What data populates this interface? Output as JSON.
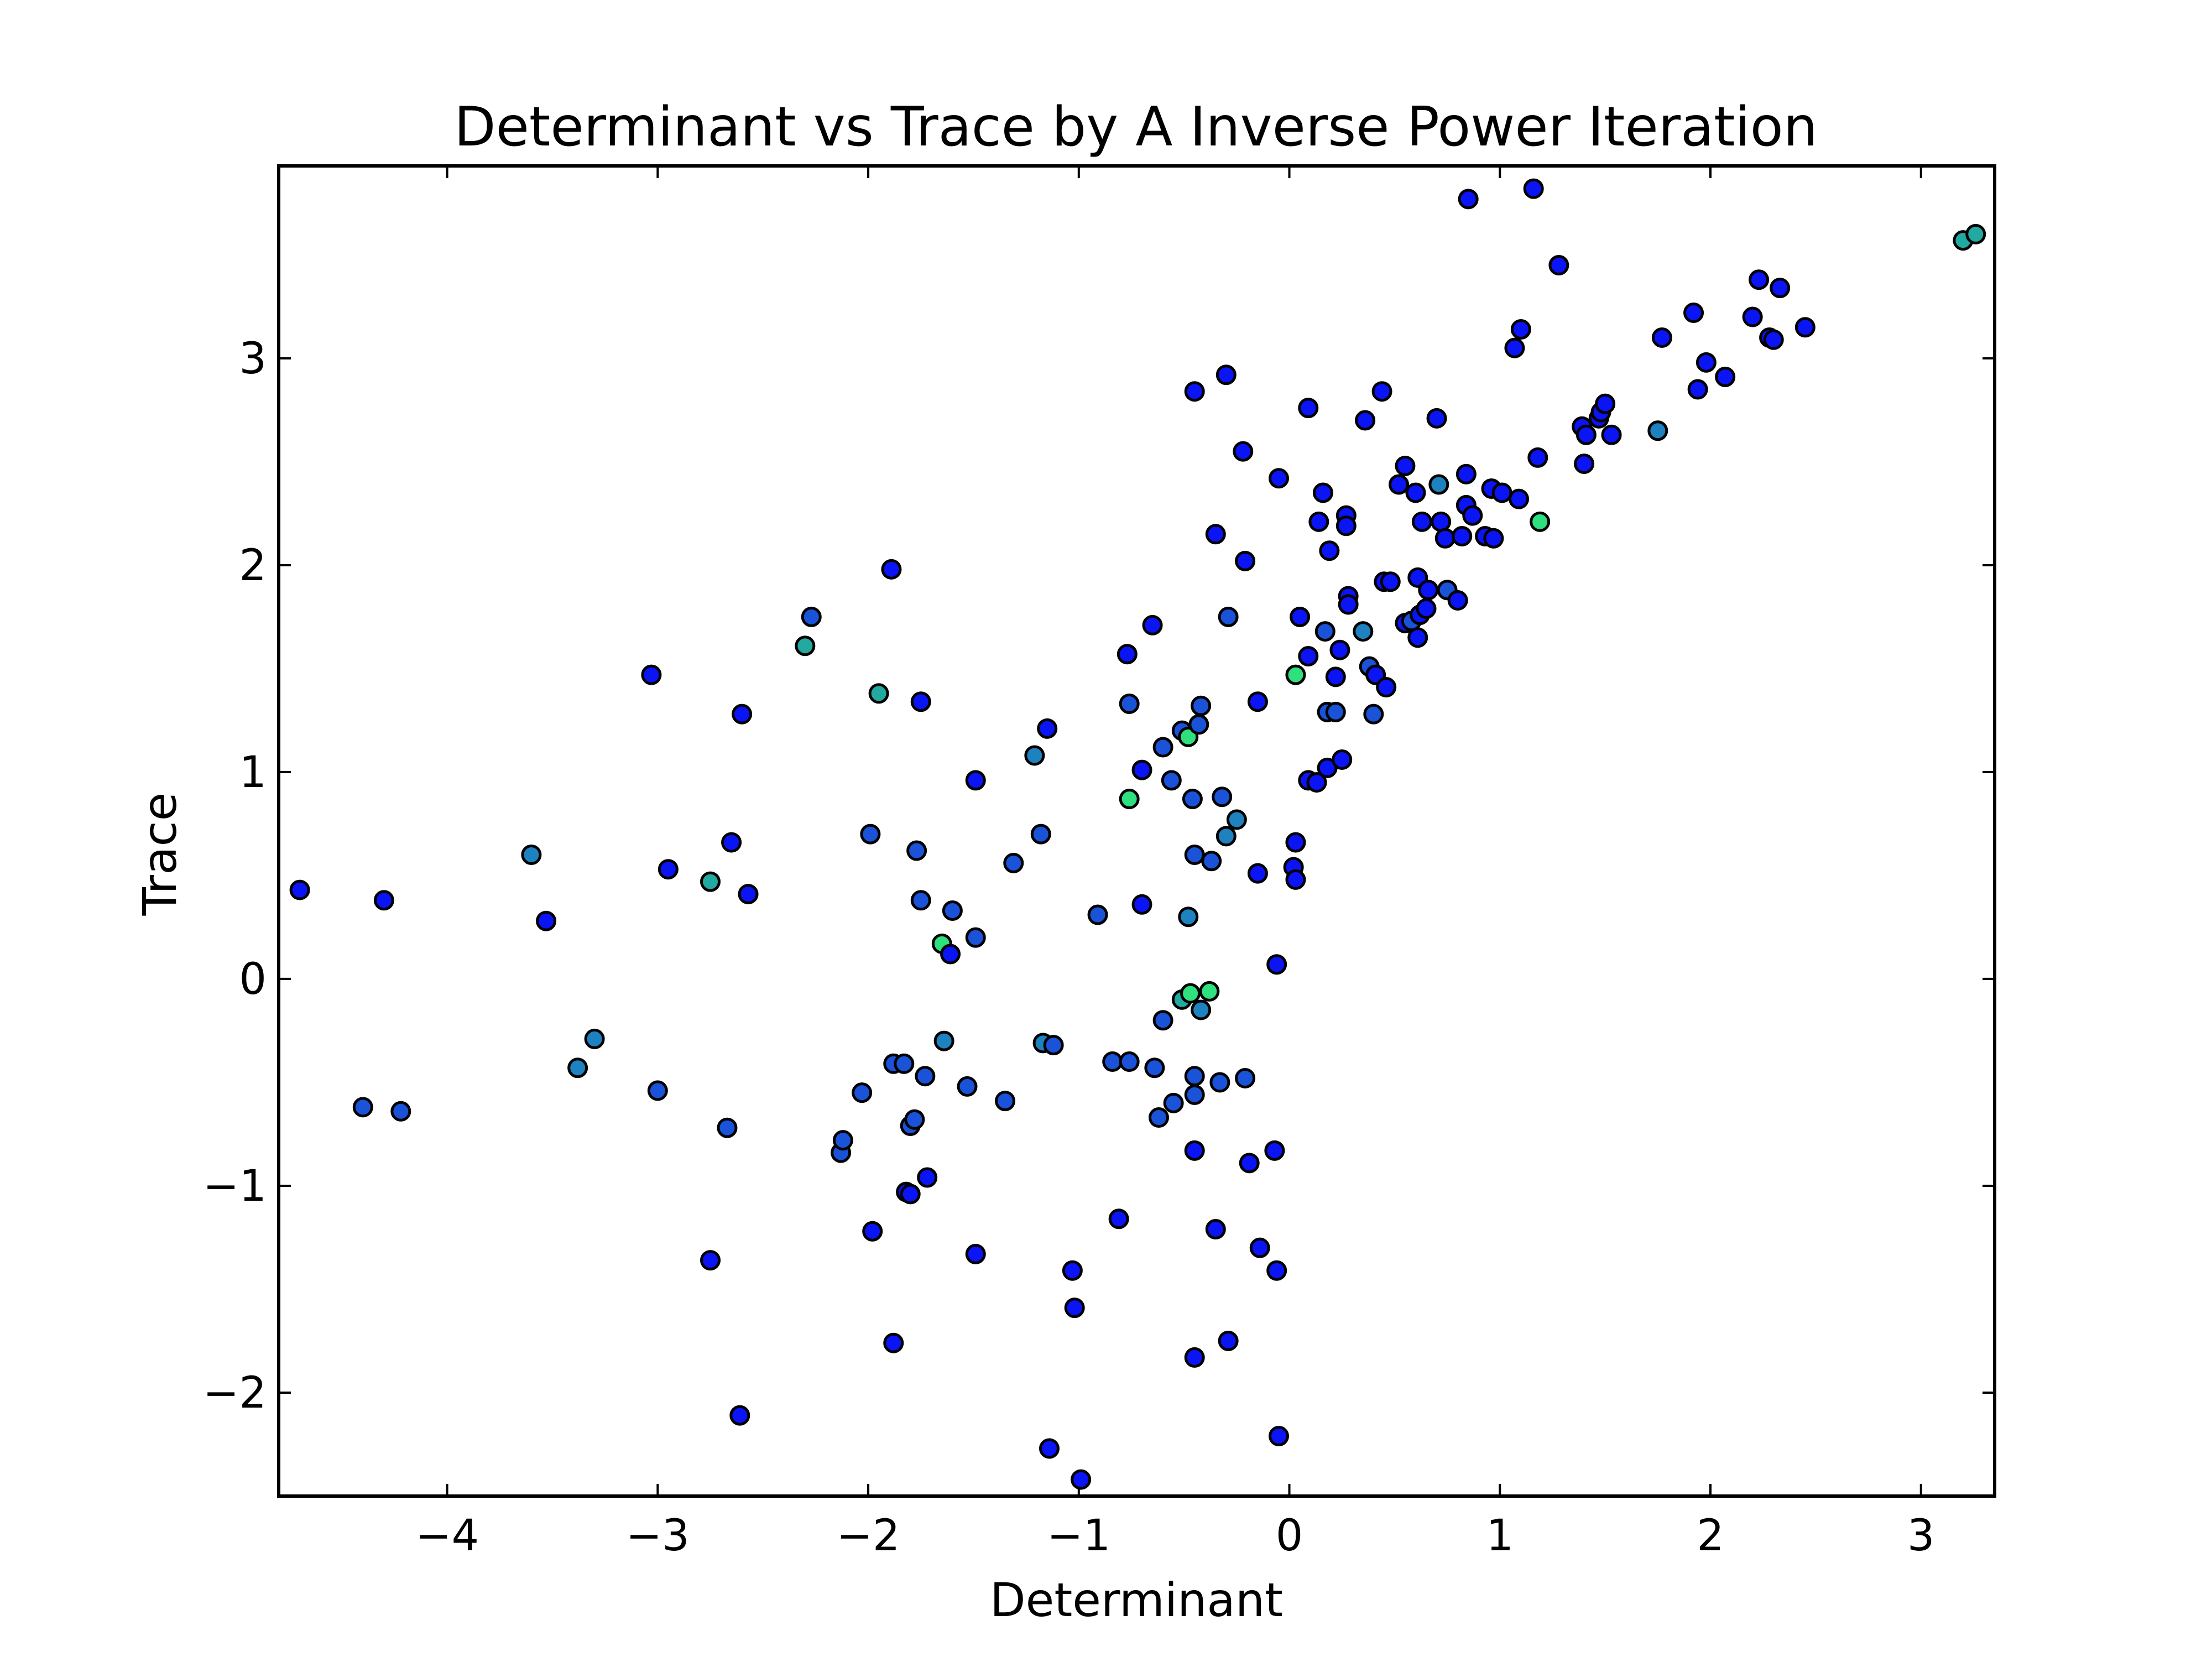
{
  "chart_data": {
    "type": "scatter",
    "title": "Determinant vs Trace by A Inverse Power Iteration",
    "xlabel": "Determinant",
    "ylabel": "Trace",
    "xlim": [
      -4.8,
      3.35
    ],
    "ylim": [
      -2.5,
      3.93
    ],
    "xticks": [
      -4,
      -3,
      -2,
      -1,
      0,
      1,
      2,
      3
    ],
    "yticks": [
      -2,
      -1,
      0,
      1,
      2,
      3
    ],
    "xtick_labels": [
      "−4",
      "−3",
      "−2",
      "−1",
      "0",
      "1",
      "2",
      "3"
    ],
    "ytick_labels": [
      "−2",
      "−1",
      "0",
      "1",
      "2",
      "3"
    ],
    "grid": false,
    "legend": "none",
    "colors": {
      "blue": "#0a14f5",
      "mid_blue": "#1a52d8",
      "steel": "#1e82c0",
      "teal": "#22a9a0",
      "green": "#2fe07e"
    },
    "points": [
      {
        "x": -4.7,
        "y": 0.43,
        "c": "blue"
      },
      {
        "x": -4.3,
        "y": 0.38,
        "c": "blue"
      },
      {
        "x": -4.4,
        "y": -0.62,
        "c": "mid_blue"
      },
      {
        "x": -4.22,
        "y": -0.64,
        "c": "mid_blue"
      },
      {
        "x": -3.6,
        "y": 0.6,
        "c": "steel"
      },
      {
        "x": -3.53,
        "y": 0.28,
        "c": "blue"
      },
      {
        "x": -3.38,
        "y": -0.43,
        "c": "steel"
      },
      {
        "x": -3.3,
        "y": -0.29,
        "c": "steel"
      },
      {
        "x": -3.03,
        "y": 1.47,
        "c": "blue"
      },
      {
        "x": -3.0,
        "y": -0.54,
        "c": "mid_blue"
      },
      {
        "x": -2.95,
        "y": 0.53,
        "c": "blue"
      },
      {
        "x": -2.75,
        "y": 0.47,
        "c": "teal"
      },
      {
        "x": -2.75,
        "y": -1.36,
        "c": "blue"
      },
      {
        "x": -2.67,
        "y": -0.72,
        "c": "mid_blue"
      },
      {
        "x": -2.65,
        "y": 0.66,
        "c": "blue"
      },
      {
        "x": -2.61,
        "y": -2.11,
        "c": "blue"
      },
      {
        "x": -2.6,
        "y": 1.28,
        "c": "blue"
      },
      {
        "x": -2.57,
        "y": 0.41,
        "c": "blue"
      },
      {
        "x": -2.3,
        "y": 1.61,
        "c": "teal"
      },
      {
        "x": -2.27,
        "y": 1.75,
        "c": "mid_blue"
      },
      {
        "x": -2.13,
        "y": -0.84,
        "c": "mid_blue"
      },
      {
        "x": -2.12,
        "y": -0.78,
        "c": "mid_blue"
      },
      {
        "x": -2.03,
        "y": -0.55,
        "c": "mid_blue"
      },
      {
        "x": -1.99,
        "y": 0.7,
        "c": "mid_blue"
      },
      {
        "x": -1.98,
        "y": -1.22,
        "c": "blue"
      },
      {
        "x": -1.95,
        "y": 1.38,
        "c": "teal"
      },
      {
        "x": -1.89,
        "y": 1.98,
        "c": "blue"
      },
      {
        "x": -1.88,
        "y": -0.41,
        "c": "mid_blue"
      },
      {
        "x": -1.88,
        "y": -1.76,
        "c": "blue"
      },
      {
        "x": -1.83,
        "y": -0.41,
        "c": "mid_blue"
      },
      {
        "x": -1.82,
        "y": -1.03,
        "c": "blue"
      },
      {
        "x": -1.8,
        "y": -1.04,
        "c": "blue"
      },
      {
        "x": -1.8,
        "y": -0.71,
        "c": "mid_blue"
      },
      {
        "x": -1.78,
        "y": -0.68,
        "c": "mid_blue"
      },
      {
        "x": -1.77,
        "y": 0.62,
        "c": "mid_blue"
      },
      {
        "x": -1.75,
        "y": 1.34,
        "c": "blue"
      },
      {
        "x": -1.75,
        "y": 0.38,
        "c": "mid_blue"
      },
      {
        "x": -1.73,
        "y": -0.47,
        "c": "mid_blue"
      },
      {
        "x": -1.72,
        "y": -0.96,
        "c": "blue"
      },
      {
        "x": -1.65,
        "y": 0.17,
        "c": "green"
      },
      {
        "x": -1.64,
        "y": -0.3,
        "c": "steel"
      },
      {
        "x": -1.61,
        "y": 0.12,
        "c": "blue"
      },
      {
        "x": -1.6,
        "y": 0.33,
        "c": "mid_blue"
      },
      {
        "x": -1.53,
        "y": -0.52,
        "c": "mid_blue"
      },
      {
        "x": -1.49,
        "y": 0.96,
        "c": "blue"
      },
      {
        "x": -1.49,
        "y": 0.2,
        "c": "mid_blue"
      },
      {
        "x": -1.49,
        "y": -1.33,
        "c": "blue"
      },
      {
        "x": -1.35,
        "y": -0.59,
        "c": "mid_blue"
      },
      {
        "x": -1.31,
        "y": 0.56,
        "c": "mid_blue"
      },
      {
        "x": -1.21,
        "y": 1.08,
        "c": "steel"
      },
      {
        "x": -1.18,
        "y": 0.7,
        "c": "mid_blue"
      },
      {
        "x": -1.17,
        "y": -0.31,
        "c": "steel"
      },
      {
        "x": -1.15,
        "y": 1.21,
        "c": "blue"
      },
      {
        "x": -1.12,
        "y": -0.32,
        "c": "mid_blue"
      },
      {
        "x": -1.14,
        "y": -2.27,
        "c": "blue"
      },
      {
        "x": -1.03,
        "y": -1.41,
        "c": "blue"
      },
      {
        "x": -1.02,
        "y": -1.59,
        "c": "blue"
      },
      {
        "x": -0.99,
        "y": -2.42,
        "c": "blue"
      },
      {
        "x": -0.91,
        "y": 0.31,
        "c": "mid_blue"
      },
      {
        "x": -0.84,
        "y": -0.4,
        "c": "mid_blue"
      },
      {
        "x": -0.81,
        "y": -1.16,
        "c": "blue"
      },
      {
        "x": -0.77,
        "y": 1.57,
        "c": "blue"
      },
      {
        "x": -0.76,
        "y": 1.33,
        "c": "mid_blue"
      },
      {
        "x": -0.76,
        "y": 0.87,
        "c": "green"
      },
      {
        "x": -0.76,
        "y": -0.4,
        "c": "mid_blue"
      },
      {
        "x": -0.7,
        "y": 1.01,
        "c": "blue"
      },
      {
        "x": -0.7,
        "y": 0.36,
        "c": "blue"
      },
      {
        "x": -0.65,
        "y": 1.71,
        "c": "blue"
      },
      {
        "x": -0.64,
        "y": -0.43,
        "c": "mid_blue"
      },
      {
        "x": -0.62,
        "y": -0.67,
        "c": "mid_blue"
      },
      {
        "x": -0.6,
        "y": -0.2,
        "c": "mid_blue"
      },
      {
        "x": -0.6,
        "y": 1.12,
        "c": "mid_blue"
      },
      {
        "x": -0.56,
        "y": 0.96,
        "c": "mid_blue"
      },
      {
        "x": -0.55,
        "y": -0.6,
        "c": "mid_blue"
      },
      {
        "x": -0.51,
        "y": 1.2,
        "c": "mid_blue"
      },
      {
        "x": -0.51,
        "y": -0.1,
        "c": "teal"
      },
      {
        "x": -0.48,
        "y": 1.17,
        "c": "green"
      },
      {
        "x": -0.48,
        "y": 0.3,
        "c": "steel"
      },
      {
        "x": -0.47,
        "y": -0.07,
        "c": "green"
      },
      {
        "x": -0.46,
        "y": 0.87,
        "c": "mid_blue"
      },
      {
        "x": -0.45,
        "y": 0.6,
        "c": "mid_blue"
      },
      {
        "x": -0.45,
        "y": 2.84,
        "c": "blue"
      },
      {
        "x": -0.45,
        "y": -0.47,
        "c": "mid_blue"
      },
      {
        "x": -0.45,
        "y": -0.56,
        "c": "mid_blue"
      },
      {
        "x": -0.45,
        "y": -0.83,
        "c": "blue"
      },
      {
        "x": -0.45,
        "y": -1.83,
        "c": "blue"
      },
      {
        "x": -0.43,
        "y": 1.23,
        "c": "mid_blue"
      },
      {
        "x": -0.42,
        "y": 1.32,
        "c": "mid_blue"
      },
      {
        "x": -0.42,
        "y": -0.15,
        "c": "steel"
      },
      {
        "x": -0.38,
        "y": -0.06,
        "c": "green"
      },
      {
        "x": -0.37,
        "y": 0.57,
        "c": "mid_blue"
      },
      {
        "x": -0.35,
        "y": 2.15,
        "c": "blue"
      },
      {
        "x": -0.35,
        "y": -1.21,
        "c": "blue"
      },
      {
        "x": -0.33,
        "y": -0.5,
        "c": "mid_blue"
      },
      {
        "x": -0.32,
        "y": 0.88,
        "c": "mid_blue"
      },
      {
        "x": -0.3,
        "y": 2.92,
        "c": "blue"
      },
      {
        "x": -0.3,
        "y": 0.69,
        "c": "steel"
      },
      {
        "x": -0.29,
        "y": 1.75,
        "c": "mid_blue"
      },
      {
        "x": -0.29,
        "y": -1.75,
        "c": "blue"
      },
      {
        "x": -0.25,
        "y": 0.77,
        "c": "steel"
      },
      {
        "x": -0.22,
        "y": 2.55,
        "c": "blue"
      },
      {
        "x": -0.21,
        "y": 2.02,
        "c": "blue"
      },
      {
        "x": -0.21,
        "y": -0.48,
        "c": "mid_blue"
      },
      {
        "x": -0.19,
        "y": -0.89,
        "c": "blue"
      },
      {
        "x": -0.15,
        "y": 1.34,
        "c": "blue"
      },
      {
        "x": -0.15,
        "y": 0.51,
        "c": "blue"
      },
      {
        "x": -0.14,
        "y": -1.3,
        "c": "blue"
      },
      {
        "x": -0.07,
        "y": -0.83,
        "c": "blue"
      },
      {
        "x": -0.06,
        "y": -1.41,
        "c": "blue"
      },
      {
        "x": -0.06,
        "y": 0.07,
        "c": "blue"
      },
      {
        "x": -0.05,
        "y": 2.42,
        "c": "blue"
      },
      {
        "x": -0.05,
        "y": -2.21,
        "c": "blue"
      },
      {
        "x": 0.02,
        "y": 0.54,
        "c": "blue"
      },
      {
        "x": 0.03,
        "y": 0.66,
        "c": "blue"
      },
      {
        "x": 0.03,
        "y": 0.48,
        "c": "blue"
      },
      {
        "x": 0.03,
        "y": 1.47,
        "c": "green"
      },
      {
        "x": 0.05,
        "y": 1.75,
        "c": "blue"
      },
      {
        "x": 0.09,
        "y": 2.76,
        "c": "blue"
      },
      {
        "x": 0.09,
        "y": 1.56,
        "c": "blue"
      },
      {
        "x": 0.09,
        "y": 0.96,
        "c": "blue"
      },
      {
        "x": 0.13,
        "y": 0.95,
        "c": "blue"
      },
      {
        "x": 0.14,
        "y": 2.21,
        "c": "blue"
      },
      {
        "x": 0.16,
        "y": 2.35,
        "c": "blue"
      },
      {
        "x": 0.17,
        "y": 1.68,
        "c": "mid_blue"
      },
      {
        "x": 0.18,
        "y": 1.29,
        "c": "mid_blue"
      },
      {
        "x": 0.18,
        "y": 1.02,
        "c": "blue"
      },
      {
        "x": 0.19,
        "y": 2.07,
        "c": "blue"
      },
      {
        "x": 0.22,
        "y": 1.46,
        "c": "blue"
      },
      {
        "x": 0.22,
        "y": 1.29,
        "c": "mid_blue"
      },
      {
        "x": 0.24,
        "y": 1.59,
        "c": "blue"
      },
      {
        "x": 0.25,
        "y": 1.06,
        "c": "blue"
      },
      {
        "x": 0.27,
        "y": 2.24,
        "c": "blue"
      },
      {
        "x": 0.27,
        "y": 2.19,
        "c": "blue"
      },
      {
        "x": 0.28,
        "y": 1.85,
        "c": "blue"
      },
      {
        "x": 0.28,
        "y": 1.81,
        "c": "blue"
      },
      {
        "x": 0.35,
        "y": 1.68,
        "c": "steel"
      },
      {
        "x": 0.36,
        "y": 2.7,
        "c": "blue"
      },
      {
        "x": 0.38,
        "y": 1.51,
        "c": "mid_blue"
      },
      {
        "x": 0.4,
        "y": 1.28,
        "c": "mid_blue"
      },
      {
        "x": 0.41,
        "y": 1.47,
        "c": "blue"
      },
      {
        "x": 0.44,
        "y": 2.84,
        "c": "blue"
      },
      {
        "x": 0.45,
        "y": 1.92,
        "c": "blue"
      },
      {
        "x": 0.46,
        "y": 1.41,
        "c": "blue"
      },
      {
        "x": 0.48,
        "y": 1.92,
        "c": "blue"
      },
      {
        "x": 0.52,
        "y": 2.39,
        "c": "blue"
      },
      {
        "x": 0.55,
        "y": 1.72,
        "c": "blue"
      },
      {
        "x": 0.55,
        "y": 2.48,
        "c": "blue"
      },
      {
        "x": 0.58,
        "y": 1.73,
        "c": "mid_blue"
      },
      {
        "x": 0.6,
        "y": 2.35,
        "c": "blue"
      },
      {
        "x": 0.61,
        "y": 1.94,
        "c": "blue"
      },
      {
        "x": 0.61,
        "y": 1.65,
        "c": "blue"
      },
      {
        "x": 0.62,
        "y": 1.76,
        "c": "blue"
      },
      {
        "x": 0.63,
        "y": 2.21,
        "c": "blue"
      },
      {
        "x": 0.65,
        "y": 1.79,
        "c": "blue"
      },
      {
        "x": 0.66,
        "y": 1.88,
        "c": "blue"
      },
      {
        "x": 0.7,
        "y": 2.71,
        "c": "blue"
      },
      {
        "x": 0.71,
        "y": 2.39,
        "c": "steel"
      },
      {
        "x": 0.72,
        "y": 2.21,
        "c": "blue"
      },
      {
        "x": 0.74,
        "y": 2.13,
        "c": "blue"
      },
      {
        "x": 0.75,
        "y": 1.88,
        "c": "mid_blue"
      },
      {
        "x": 0.8,
        "y": 1.83,
        "c": "blue"
      },
      {
        "x": 0.82,
        "y": 2.14,
        "c": "blue"
      },
      {
        "x": 0.84,
        "y": 2.44,
        "c": "blue"
      },
      {
        "x": 0.84,
        "y": 2.29,
        "c": "blue"
      },
      {
        "x": 0.85,
        "y": 3.77,
        "c": "blue"
      },
      {
        "x": 0.87,
        "y": 2.24,
        "c": "blue"
      },
      {
        "x": 0.93,
        "y": 2.14,
        "c": "blue"
      },
      {
        "x": 0.96,
        "y": 2.37,
        "c": "blue"
      },
      {
        "x": 0.97,
        "y": 2.13,
        "c": "blue"
      },
      {
        "x": 1.01,
        "y": 2.35,
        "c": "blue"
      },
      {
        "x": 1.07,
        "y": 3.05,
        "c": "blue"
      },
      {
        "x": 1.09,
        "y": 2.32,
        "c": "blue"
      },
      {
        "x": 1.1,
        "y": 3.14,
        "c": "blue"
      },
      {
        "x": 1.16,
        "y": 3.82,
        "c": "blue"
      },
      {
        "x": 1.18,
        "y": 2.52,
        "c": "blue"
      },
      {
        "x": 1.19,
        "y": 2.21,
        "c": "green"
      },
      {
        "x": 1.28,
        "y": 3.45,
        "c": "blue"
      },
      {
        "x": 1.39,
        "y": 2.67,
        "c": "blue"
      },
      {
        "x": 1.4,
        "y": 2.49,
        "c": "blue"
      },
      {
        "x": 1.41,
        "y": 2.63,
        "c": "blue"
      },
      {
        "x": 1.47,
        "y": 2.71,
        "c": "blue"
      },
      {
        "x": 1.48,
        "y": 2.74,
        "c": "blue"
      },
      {
        "x": 1.5,
        "y": 2.78,
        "c": "blue"
      },
      {
        "x": 1.53,
        "y": 2.63,
        "c": "blue"
      },
      {
        "x": 1.75,
        "y": 2.65,
        "c": "steel"
      },
      {
        "x": 1.77,
        "y": 3.1,
        "c": "blue"
      },
      {
        "x": 1.92,
        "y": 3.22,
        "c": "blue"
      },
      {
        "x": 1.94,
        "y": 2.85,
        "c": "blue"
      },
      {
        "x": 1.98,
        "y": 2.98,
        "c": "blue"
      },
      {
        "x": 2.07,
        "y": 2.91,
        "c": "blue"
      },
      {
        "x": 2.2,
        "y": 3.2,
        "c": "blue"
      },
      {
        "x": 2.23,
        "y": 3.38,
        "c": "blue"
      },
      {
        "x": 2.28,
        "y": 3.1,
        "c": "blue"
      },
      {
        "x": 2.3,
        "y": 3.09,
        "c": "blue"
      },
      {
        "x": 2.33,
        "y": 3.34,
        "c": "blue"
      },
      {
        "x": 2.45,
        "y": 3.15,
        "c": "blue"
      },
      {
        "x": 3.2,
        "y": 3.57,
        "c": "teal"
      },
      {
        "x": 3.26,
        "y": 3.6,
        "c": "teal"
      }
    ]
  }
}
